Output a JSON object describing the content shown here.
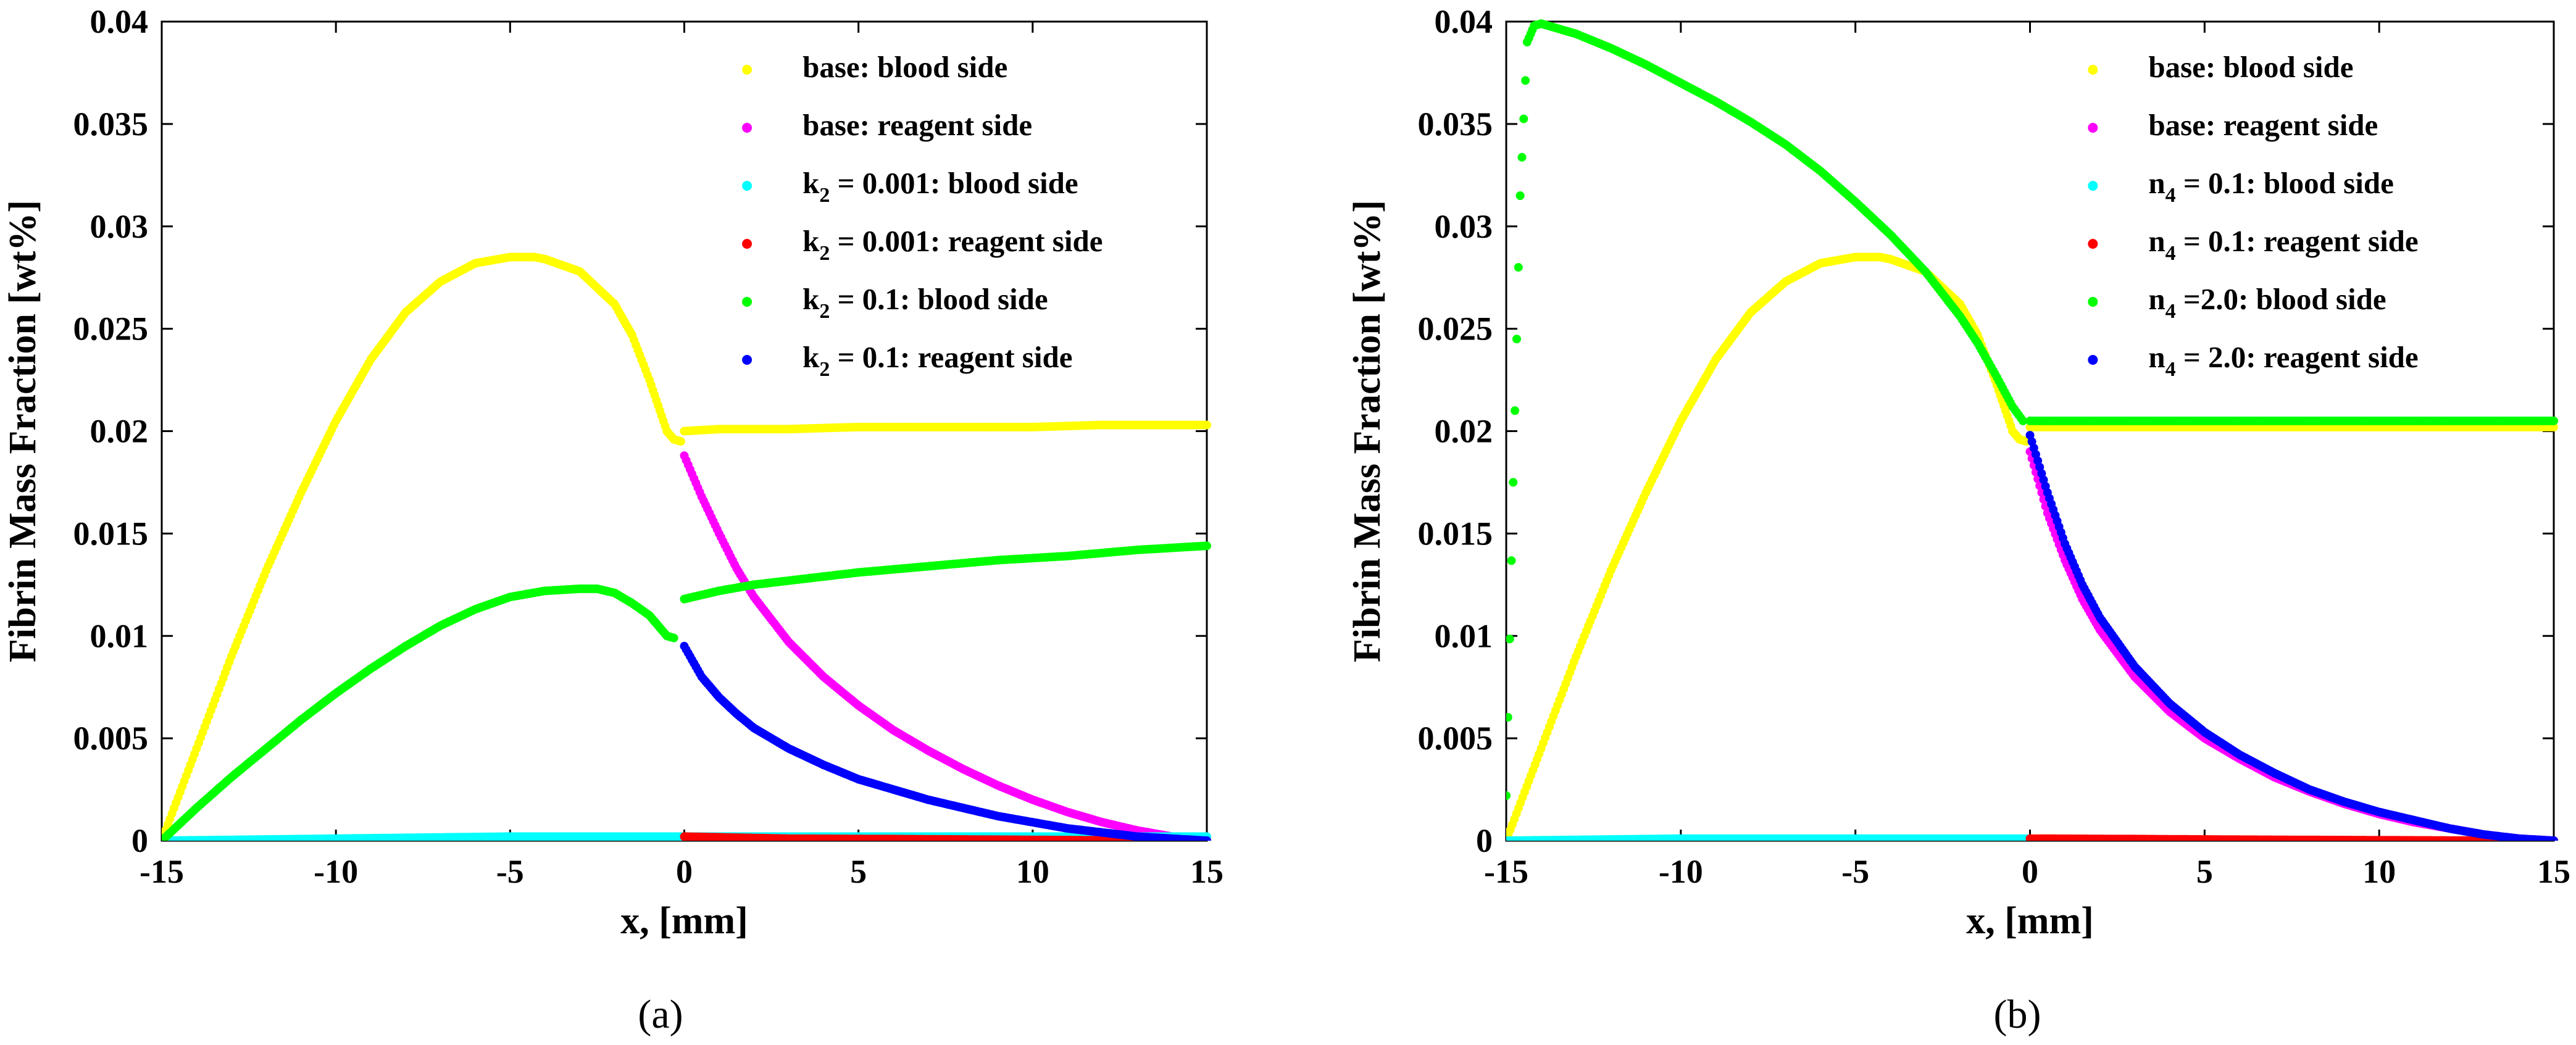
{
  "chart_data": [
    {
      "type": "scatter",
      "panel_label": "(a)",
      "xlabel": "x, [mm]",
      "ylabel": "Fibrin Mass Fraction [wt%]",
      "xlim": [
        -15,
        15
      ],
      "ylim": [
        0,
        0.04
      ],
      "xticks": [
        -15,
        -10,
        -5,
        0,
        5,
        10,
        15
      ],
      "xtick_labels": [
        "-15",
        "-10",
        "-5",
        "0",
        "5",
        "10",
        "15"
      ],
      "yticks": [
        0,
        0.005,
        0.01,
        0.015,
        0.02,
        0.025,
        0.03,
        0.035,
        0.04
      ],
      "ytick_labels": [
        "0",
        "0.005",
        "0.01",
        "0.015",
        "0.02",
        "0.025",
        "0.03",
        "0.035",
        "0.04"
      ],
      "legend_position": "top-right",
      "series": [
        {
          "name": "base: blood side",
          "label_main": "base: blood side",
          "label_sub": "",
          "label_rest": "",
          "color": "#ffff00",
          "x": [
            -15,
            -14,
            -13,
            -12,
            -11,
            -10,
            -9,
            -8,
            -7,
            -6,
            -5,
            -4.3,
            -4,
            -3,
            -2,
            -1.5,
            -1,
            -0.7,
            -0.5,
            -0.3,
            -0.1
          ],
          "y": [
            0,
            0.0045,
            0.009,
            0.0132,
            0.017,
            0.0205,
            0.0235,
            0.0258,
            0.0273,
            0.0282,
            0.0285,
            0.0285,
            0.0284,
            0.0278,
            0.0262,
            0.0247,
            0.0225,
            0.021,
            0.02,
            0.0196,
            0.0195
          ]
        },
        {
          "name": "base: blood side (right)",
          "label_main": "",
          "label_sub": "",
          "label_rest": "",
          "color": "#ffff00",
          "x": [
            0,
            1,
            3,
            5,
            8,
            10,
            12,
            15
          ],
          "y": [
            0.02,
            0.0201,
            0.0201,
            0.0202,
            0.0202,
            0.0202,
            0.0203,
            0.0203
          ]
        },
        {
          "name": "base: reagent side",
          "label_main": "base: reagent side",
          "label_sub": "",
          "label_rest": "",
          "color": "#ff00ff",
          "x": [
            0,
            0.5,
            1,
            1.5,
            2,
            3,
            4,
            5,
            6,
            7,
            8,
            9,
            10,
            11,
            12,
            13,
            14,
            15
          ],
          "y": [
            0.0188,
            0.0168,
            0.015,
            0.0133,
            0.0119,
            0.0097,
            0.008,
            0.0066,
            0.0054,
            0.0044,
            0.0035,
            0.0027,
            0.002,
            0.0014,
            0.0009,
            0.0005,
            0.0002,
            0.0
          ]
        },
        {
          "name": "k2 = 0.001: blood side",
          "label_main": "k",
          "label_sub": "2",
          "label_rest": " = 0.001: blood side",
          "color": "#00ffff",
          "x": [
            -15,
            -10,
            -5,
            0,
            5,
            10,
            15
          ],
          "y": [
            0,
            0.0001,
            0.0002,
            0.0002,
            0.0002,
            0.0002,
            0.0002
          ]
        },
        {
          "name": "k2 = 0.001: reagent side",
          "label_main": "k",
          "label_sub": "2",
          "label_rest": " = 0.001: reagent side",
          "color": "#ff0000",
          "x": [
            0,
            3,
            6,
            9,
            12,
            15
          ],
          "y": [
            0.0002,
            0.0001,
            8e-05,
            5e-05,
            2e-05,
            0
          ]
        },
        {
          "name": "k2 = 0.1: blood side",
          "label_main": "k",
          "label_sub": "2",
          "label_rest": " = 0.1: blood side",
          "color": "#00ff00",
          "x": [
            -15,
            -14,
            -13,
            -12,
            -11,
            -10,
            -9,
            -8,
            -7,
            -6,
            -5,
            -4,
            -3,
            -2.5,
            -2,
            -1.5,
            -1,
            -0.7,
            -0.5,
            -0.3
          ],
          "y": [
            0,
            0.0016,
            0.0031,
            0.0045,
            0.0059,
            0.0072,
            0.0084,
            0.0095,
            0.0105,
            0.0113,
            0.0119,
            0.0122,
            0.0123,
            0.0123,
            0.0121,
            0.0116,
            0.011,
            0.0104,
            0.01,
            0.0099
          ]
        },
        {
          "name": "k2 = 0.1: blood side (right)",
          "label_main": "",
          "label_sub": "",
          "label_rest": "",
          "color": "#00ff00",
          "x": [
            0,
            0.5,
            1,
            2,
            3,
            5,
            7,
            9,
            11,
            13,
            15
          ],
          "y": [
            0.0118,
            0.012,
            0.0122,
            0.0125,
            0.0127,
            0.0131,
            0.0134,
            0.0137,
            0.0139,
            0.0142,
            0.0144
          ]
        },
        {
          "name": "k2 = 0.1: reagent side",
          "label_main": "k",
          "label_sub": "2",
          "label_rest": " = 0.1: reagent side",
          "color": "#0000ff",
          "x": [
            0,
            0.5,
            1,
            1.5,
            2,
            3,
            4,
            5,
            6,
            7,
            8,
            9,
            10,
            11,
            12,
            13,
            14,
            15
          ],
          "y": [
            0.0095,
            0.008,
            0.007,
            0.0062,
            0.0055,
            0.0045,
            0.0037,
            0.003,
            0.0025,
            0.002,
            0.0016,
            0.0012,
            0.0009,
            0.0006,
            0.0004,
            0.0002,
            0.0001,
            0.0
          ]
        }
      ]
    },
    {
      "type": "scatter",
      "panel_label": "(b)",
      "xlabel": "x, [mm]",
      "ylabel": "Fibrin Mass Fraction [wt%]",
      "xlim": [
        -15,
        15
      ],
      "ylim": [
        0,
        0.04
      ],
      "xticks": [
        -15,
        -10,
        -5,
        0,
        5,
        10,
        15
      ],
      "xtick_labels": [
        "-15",
        "-10",
        "-5",
        "0",
        "5",
        "10",
        "15"
      ],
      "yticks": [
        0,
        0.005,
        0.01,
        0.015,
        0.02,
        0.025,
        0.03,
        0.035,
        0.04
      ],
      "ytick_labels": [
        "0",
        "0.005",
        "0.01",
        "0.015",
        "0.02",
        "0.025",
        "0.03",
        "0.035",
        "0.04"
      ],
      "legend_position": "top-right",
      "series": [
        {
          "name": "base: blood side",
          "label_main": "base: blood side",
          "label_sub": "",
          "label_rest": "",
          "color": "#ffff00",
          "x": [
            -15,
            -14,
            -13,
            -12,
            -11,
            -10,
            -9,
            -8,
            -7,
            -6,
            -5,
            -4.3,
            -4,
            -3,
            -2,
            -1.5,
            -1,
            -0.7,
            -0.5,
            -0.3,
            -0.1
          ],
          "y": [
            0,
            0.0045,
            0.009,
            0.0132,
            0.017,
            0.0205,
            0.0235,
            0.0258,
            0.0273,
            0.0282,
            0.0285,
            0.0285,
            0.0284,
            0.0278,
            0.0262,
            0.0247,
            0.0225,
            0.021,
            0.02,
            0.0196,
            0.0195
          ]
        },
        {
          "name": "base: blood side (right)",
          "label_main": "",
          "label_sub": "",
          "label_rest": "",
          "color": "#ffff00",
          "x": [
            0,
            3,
            6,
            9,
            12,
            15
          ],
          "y": [
            0.0202,
            0.0202,
            0.0202,
            0.0202,
            0.0202,
            0.0202
          ]
        },
        {
          "name": "base: reagent side",
          "label_main": "base: reagent side",
          "label_sub": "",
          "label_rest": "",
          "color": "#ff00ff",
          "x": [
            0,
            0.5,
            1,
            1.5,
            2,
            3,
            4,
            5,
            6,
            7,
            8,
            9,
            10,
            11,
            12,
            13,
            14,
            15
          ],
          "y": [
            0.019,
            0.016,
            0.0137,
            0.0118,
            0.0103,
            0.008,
            0.0063,
            0.005,
            0.004,
            0.0031,
            0.0024,
            0.0018,
            0.0013,
            0.0009,
            0.0006,
            0.0003,
            0.0001,
            0.0
          ]
        },
        {
          "name": "n4 = 0.1: blood side",
          "label_main": "n",
          "label_sub": "4",
          "label_rest": " = 0.1: blood side",
          "color": "#00ffff",
          "x": [
            -15,
            -10,
            -5,
            0
          ],
          "y": [
            0,
            0.0001,
            0.0001,
            0.0001
          ]
        },
        {
          "name": "n4 = 0.1: reagent side",
          "label_main": "n",
          "label_sub": "4",
          "label_rest": " = 0.1: reagent side",
          "color": "#ff0000",
          "x": [
            0,
            3,
            6,
            9,
            12,
            15
          ],
          "y": [
            0.0001,
            8e-05,
            5e-05,
            3e-05,
            1e-05,
            0
          ]
        },
        {
          "name": "n4 =2.0: blood side",
          "label_main": "n",
          "label_sub": "4",
          "label_rest": " =2.0: blood side",
          "color": "#00ff00",
          "x": [
            -15,
            -14.8,
            -14.6,
            -14.4,
            -14.2,
            -14,
            -13,
            -12,
            -11,
            -10,
            -9,
            -8,
            -7,
            -6,
            -5,
            -4,
            -3,
            -2,
            -1.5,
            -1,
            -0.5,
            -0.2
          ],
          "y": [
            0.0022,
            0.0175,
            0.0315,
            0.039,
            0.0398,
            0.0399,
            0.0394,
            0.0387,
            0.0379,
            0.037,
            0.0361,
            0.0351,
            0.034,
            0.0327,
            0.0312,
            0.0296,
            0.0278,
            0.0256,
            0.0243,
            0.0228,
            0.0212,
            0.0205
          ]
        },
        {
          "name": "n4 =2.0: blood side (right)",
          "label_main": "",
          "label_sub": "",
          "label_rest": "",
          "color": "#00ff00",
          "x": [
            0,
            3,
            6,
            9,
            12,
            15
          ],
          "y": [
            0.0205,
            0.0205,
            0.0205,
            0.0205,
            0.0205,
            0.0205
          ]
        },
        {
          "name": "n4 = 2.0: reagent side",
          "label_main": "n",
          "label_sub": "4",
          "label_rest": " = 2.0: reagent side",
          "color": "#0000ff",
          "x": [
            0,
            0.5,
            1,
            1.5,
            2,
            3,
            4,
            5,
            6,
            7,
            8,
            9,
            10,
            11,
            12,
            13,
            14,
            15
          ],
          "y": [
            0.0198,
            0.017,
            0.0145,
            0.0125,
            0.0109,
            0.0085,
            0.0067,
            0.0053,
            0.0042,
            0.0033,
            0.0025,
            0.0019,
            0.0014,
            0.001,
            0.0006,
            0.0003,
            0.0001,
            0.0
          ]
        }
      ]
    }
  ]
}
